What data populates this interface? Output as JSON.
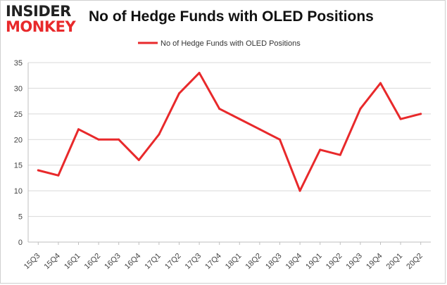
{
  "logo": {
    "line1": "INSIDER",
    "line2": "MONKEY"
  },
  "chart_data": {
    "type": "line",
    "title": "No of Hedge Funds with OLED Positions",
    "xlabel": "",
    "ylabel": "",
    "ylim": [
      0,
      35
    ],
    "yticks": [
      0,
      5,
      10,
      15,
      20,
      25,
      30,
      35
    ],
    "grid": true,
    "legend_position": "top-center",
    "categories": [
      "15Q3",
      "15Q4",
      "16Q1",
      "16Q2",
      "16Q3",
      "16Q4",
      "17Q1",
      "17Q2",
      "17Q3",
      "17Q4",
      "18Q1",
      "18Q2",
      "18Q3",
      "18Q4",
      "19Q1",
      "19Q2",
      "19Q3",
      "19Q4",
      "20Q1",
      "20Q2"
    ],
    "series": [
      {
        "name": "No of Hedge Funds with OLED Positions",
        "color": "#e8292b",
        "values": [
          14,
          13,
          22,
          20,
          20,
          16,
          21,
          29,
          33,
          26,
          24,
          22,
          20,
          10,
          18,
          17,
          26,
          31,
          24,
          25
        ]
      }
    ]
  }
}
